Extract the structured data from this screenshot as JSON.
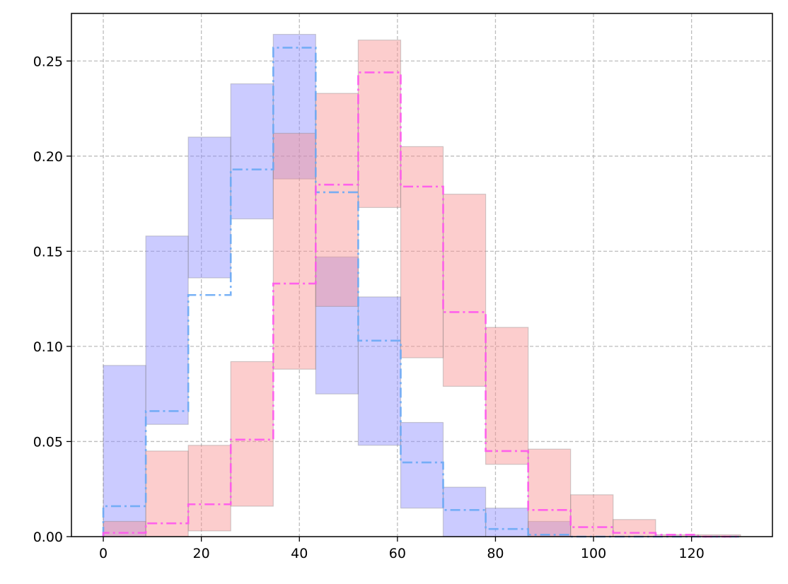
{
  "chart_data": {
    "type": "area",
    "title": "",
    "xlabel": "",
    "ylabel": "",
    "xlim": [
      -6.5,
      136.5
    ],
    "ylim": [
      0,
      0.275
    ],
    "x_ticks": [
      0,
      20,
      40,
      60,
      80,
      100,
      120
    ],
    "y_ticks": [
      0.0,
      0.05,
      0.1,
      0.15,
      0.2,
      0.25
    ],
    "x_tick_labels": [
      "0",
      "20",
      "40",
      "60",
      "80",
      "100",
      "120"
    ],
    "y_tick_labels": [
      "0.00",
      "0.05",
      "0.10",
      "0.15",
      "0.20",
      "0.25"
    ],
    "grid": true,
    "bin_edges": [
      0,
      8.67,
      17.33,
      26,
      34.67,
      43.33,
      52,
      60.67,
      69.33,
      78,
      86.67,
      95.33,
      104,
      112.67,
      121.33,
      130
    ],
    "series": [
      {
        "color_line": "#6aaaf5",
        "color_band": "#8c8cff",
        "line_style": "dash-dot",
        "values": [
          0.016,
          0.066,
          0.127,
          0.193,
          0.257,
          0.181,
          0.103,
          0.039,
          0.014,
          0.004,
          0.001,
          0.0,
          0.0,
          0.0,
          0.0
        ],
        "lower": [
          0.0,
          0.059,
          0.136,
          0.167,
          0.188,
          0.075,
          0.048,
          0.015,
          0.0,
          0.0,
          0.0,
          0.0,
          0.0,
          0.0,
          0.0
        ],
        "upper": [
          0.09,
          0.158,
          0.21,
          0.238,
          0.264,
          0.147,
          0.126,
          0.06,
          0.026,
          0.015,
          0.008,
          0.0,
          0.0,
          0.0,
          0.0
        ]
      },
      {
        "color_line": "#ff55ee",
        "color_band": "#f99090",
        "line_style": "dash-dot",
        "values": [
          0.002,
          0.007,
          0.017,
          0.051,
          0.133,
          0.185,
          0.244,
          0.184,
          0.118,
          0.045,
          0.014,
          0.005,
          0.002,
          0.001,
          0.0
        ],
        "lower": [
          0.0,
          0.0,
          0.003,
          0.016,
          0.088,
          0.121,
          0.173,
          0.094,
          0.079,
          0.038,
          0.0,
          0.0,
          0.0,
          0.0,
          0.0
        ],
        "upper": [
          0.008,
          0.045,
          0.048,
          0.092,
          0.212,
          0.233,
          0.261,
          0.205,
          0.18,
          0.11,
          0.046,
          0.022,
          0.009,
          0.001,
          0.001
        ]
      }
    ]
  }
}
